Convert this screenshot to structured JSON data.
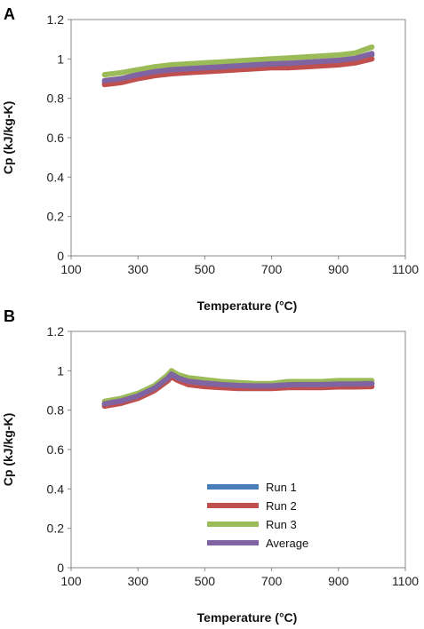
{
  "chart_data": [
    {
      "panel": "A",
      "type": "line",
      "xlabel": "Temperature (°C)",
      "ylabel": "Cp (kJ/kg-K)",
      "xlim": [
        100,
        1100
      ],
      "ylim": [
        0,
        1.2
      ],
      "xticks": [
        "100",
        "300",
        "500",
        "700",
        "900",
        "1100"
      ],
      "yticks": [
        "0",
        "0.2",
        "0.4",
        "0.6",
        "0.8",
        "1",
        "1.2"
      ],
      "x": [
        200,
        250,
        300,
        350,
        400,
        450,
        500,
        550,
        600,
        650,
        700,
        750,
        800,
        850,
        900,
        950,
        1000
      ],
      "series": [
        {
          "name": "Run 1",
          "color": "#4a7ebb",
          "values": [
            0.88,
            0.895,
            0.915,
            0.93,
            0.94,
            0.945,
            0.95,
            0.955,
            0.96,
            0.965,
            0.97,
            0.975,
            0.98,
            0.985,
            0.99,
            1.0,
            1.02
          ]
        },
        {
          "name": "Run 2",
          "color": "#c0504d",
          "values": [
            0.87,
            0.88,
            0.9,
            0.915,
            0.925,
            0.93,
            0.935,
            0.94,
            0.945,
            0.95,
            0.955,
            0.955,
            0.96,
            0.965,
            0.97,
            0.98,
            1.0
          ]
        },
        {
          "name": "Run 3",
          "color": "#9bbb59",
          "values": [
            0.92,
            0.93,
            0.945,
            0.96,
            0.97,
            0.975,
            0.98,
            0.985,
            0.99,
            0.995,
            1.0,
            1.005,
            1.01,
            1.015,
            1.02,
            1.03,
            1.06
          ]
        },
        {
          "name": "Average",
          "color": "#8064a2",
          "values": [
            0.89,
            0.9,
            0.92,
            0.935,
            0.945,
            0.95,
            0.955,
            0.96,
            0.965,
            0.97,
            0.975,
            0.978,
            0.983,
            0.988,
            0.993,
            1.003,
            1.027
          ]
        }
      ],
      "grid": false,
      "legend": "none"
    },
    {
      "panel": "B",
      "type": "line",
      "xlabel": "Temperature (°C)",
      "ylabel": "Cp (kJ/kg-K)",
      "xlim": [
        100,
        1100
      ],
      "ylim": [
        0,
        1.2
      ],
      "xticks": [
        "100",
        "300",
        "500",
        "700",
        "900",
        "1100"
      ],
      "yticks": [
        "0",
        "0.2",
        "0.4",
        "0.6",
        "0.8",
        "1",
        "1.2"
      ],
      "x": [
        200,
        250,
        300,
        350,
        390,
        400,
        420,
        450,
        500,
        550,
        600,
        650,
        700,
        750,
        800,
        850,
        900,
        950,
        1000
      ],
      "series": [
        {
          "name": "Run 1",
          "color": "#4a7ebb",
          "values": [
            0.83,
            0.845,
            0.87,
            0.91,
            0.96,
            0.98,
            0.96,
            0.945,
            0.935,
            0.93,
            0.925,
            0.925,
            0.925,
            0.928,
            0.93,
            0.93,
            0.932,
            0.932,
            0.935
          ]
        },
        {
          "name": "Run 2",
          "color": "#c0504d",
          "values": [
            0.82,
            0.835,
            0.86,
            0.9,
            0.95,
            0.97,
            0.95,
            0.93,
            0.92,
            0.915,
            0.91,
            0.91,
            0.91,
            0.915,
            0.915,
            0.915,
            0.918,
            0.918,
            0.92
          ]
        },
        {
          "name": "Run 3",
          "color": "#9bbb59",
          "values": [
            0.845,
            0.86,
            0.885,
            0.925,
            0.98,
            1.0,
            0.98,
            0.965,
            0.955,
            0.945,
            0.94,
            0.935,
            0.935,
            0.945,
            0.945,
            0.945,
            0.95,
            0.95,
            0.95
          ]
        },
        {
          "name": "Average",
          "color": "#8064a2",
          "values": [
            0.832,
            0.847,
            0.872,
            0.912,
            0.963,
            0.983,
            0.963,
            0.947,
            0.937,
            0.93,
            0.925,
            0.923,
            0.923,
            0.929,
            0.93,
            0.93,
            0.933,
            0.933,
            0.935
          ]
        }
      ],
      "grid": false,
      "legend": "center"
    }
  ],
  "panels": [
    {
      "letter": "A",
      "xlabel": "Temperature (°C)",
      "ylabel": "Cp (kJ/kg-K)"
    },
    {
      "letter": "B",
      "xlabel": "Temperature (°C)",
      "ylabel": "Cp (kJ/kg-K)"
    }
  ],
  "legend": {
    "entries": [
      {
        "label": "Run 1",
        "color": "#4a7ebb"
      },
      {
        "label": "Run 2",
        "color": "#c0504d"
      },
      {
        "label": "Run 3",
        "color": "#9bbb59"
      },
      {
        "label": "Average",
        "color": "#8064a2"
      }
    ]
  }
}
